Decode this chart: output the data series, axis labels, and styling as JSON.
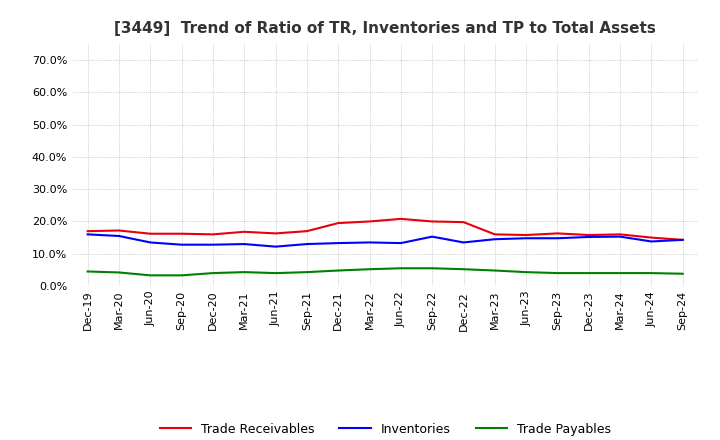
{
  "title": "[3449]  Trend of Ratio of TR, Inventories and TP to Total Assets",
  "x_labels": [
    "Dec-19",
    "Mar-20",
    "Jun-20",
    "Sep-20",
    "Dec-20",
    "Mar-21",
    "Jun-21",
    "Sep-21",
    "Dec-21",
    "Mar-22",
    "Jun-22",
    "Sep-22",
    "Dec-22",
    "Mar-23",
    "Jun-23",
    "Sep-23",
    "Dec-23",
    "Mar-24",
    "Jun-24",
    "Sep-24"
  ],
  "trade_receivables": [
    0.17,
    0.172,
    0.162,
    0.162,
    0.16,
    0.168,
    0.163,
    0.17,
    0.195,
    0.2,
    0.208,
    0.2,
    0.198,
    0.16,
    0.158,
    0.163,
    0.158,
    0.16,
    0.15,
    0.143
  ],
  "inventories": [
    0.16,
    0.155,
    0.135,
    0.128,
    0.128,
    0.13,
    0.122,
    0.13,
    0.133,
    0.135,
    0.133,
    0.153,
    0.135,
    0.145,
    0.148,
    0.148,
    0.152,
    0.153,
    0.138,
    0.143
  ],
  "trade_payables": [
    0.045,
    0.042,
    0.033,
    0.033,
    0.04,
    0.043,
    0.04,
    0.043,
    0.048,
    0.052,
    0.055,
    0.055,
    0.052,
    0.048,
    0.043,
    0.04,
    0.04,
    0.04,
    0.04,
    0.038
  ],
  "tr_color": "#e8000a",
  "inv_color": "#0000ff",
  "tp_color": "#008000",
  "ylim": [
    0.0,
    0.75
  ],
  "yticks": [
    0.0,
    0.1,
    0.2,
    0.3,
    0.4,
    0.5,
    0.6,
    0.7
  ],
  "legend_labels": [
    "Trade Receivables",
    "Inventories",
    "Trade Payables"
  ],
  "bg_color": "#ffffff",
  "plot_bg_color": "#ffffff",
  "title_fontsize": 11,
  "tick_fontsize": 8,
  "legend_fontsize": 9
}
